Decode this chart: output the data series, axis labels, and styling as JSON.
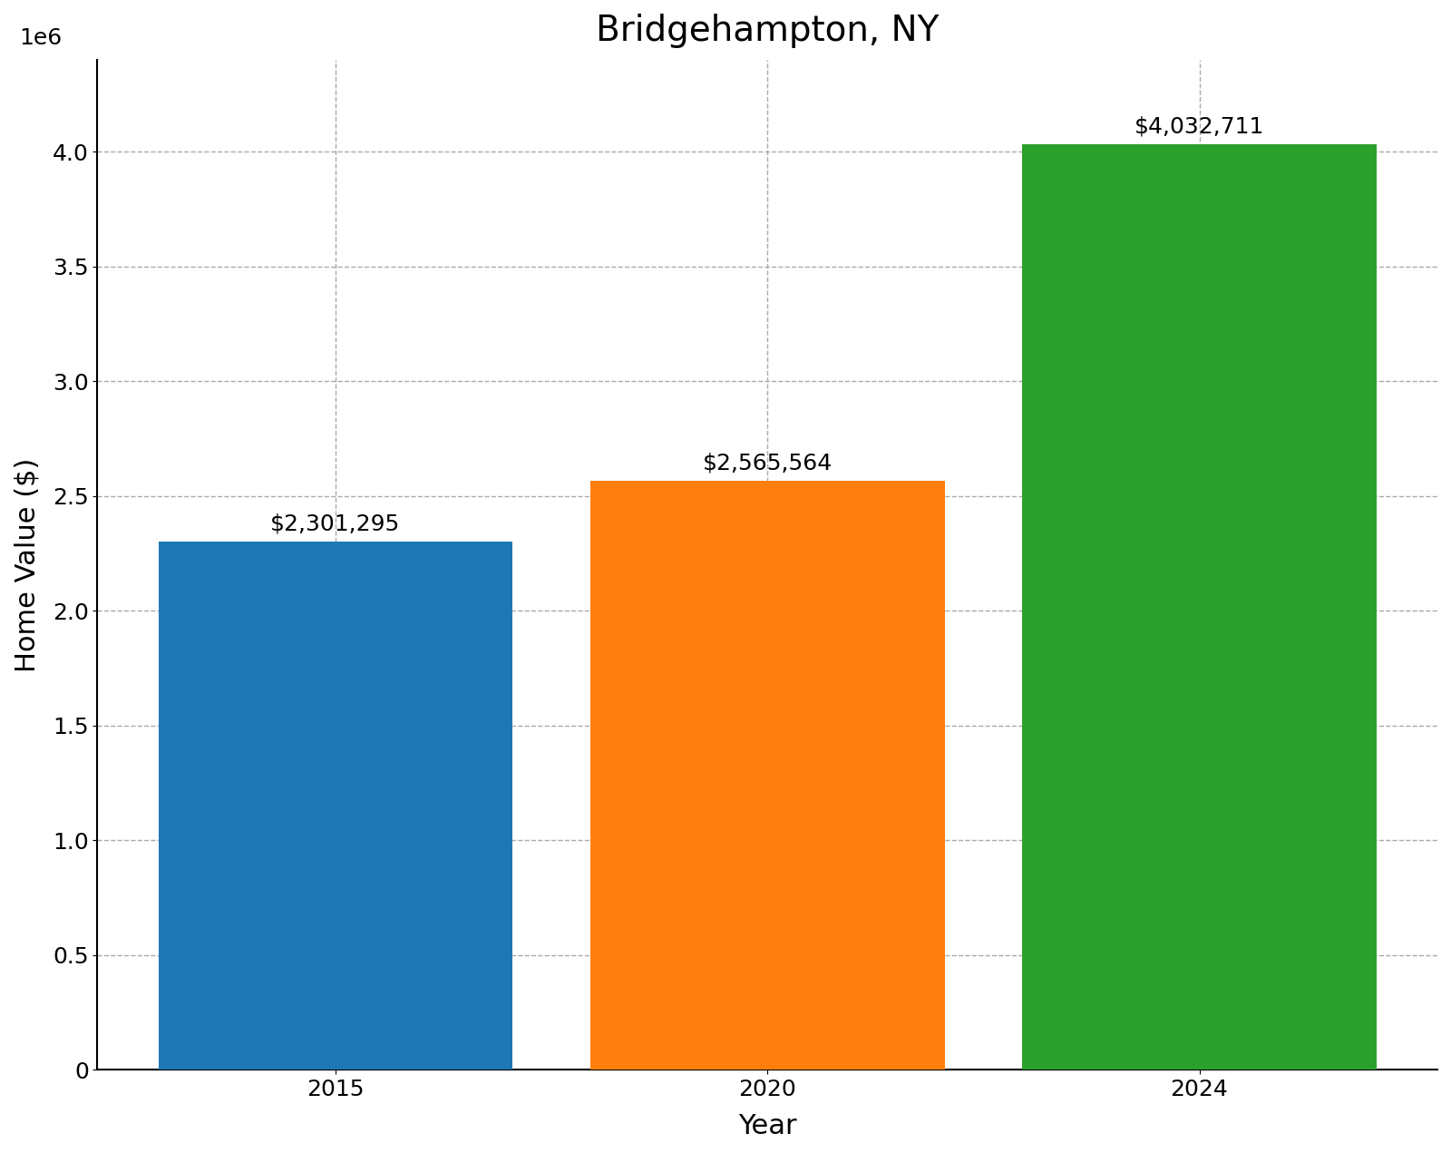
{
  "title": "Bridgehampton, NY",
  "xlabel": "Year",
  "ylabel": "Home Value ($)",
  "categories": [
    "2015",
    "2020",
    "2024"
  ],
  "values": [
    2301295,
    2565564,
    4032711
  ],
  "bar_colors": [
    "#1f77b4",
    "#ff7f0e",
    "#2ca02c"
  ],
  "labels": [
    "$2,301,295",
    "$2,565,564",
    "$4,032,711"
  ],
  "ylim": [
    0,
    4400000
  ],
  "yticks": [
    0,
    500000,
    1000000,
    1500000,
    2000000,
    2500000,
    3000000,
    3500000,
    4000000
  ],
  "title_fontsize": 28,
  "axis_label_fontsize": 22,
  "tick_fontsize": 18,
  "annotation_fontsize": 18,
  "background_color": "#ffffff",
  "grid_color": "#aaaaaa",
  "grid_linestyle": "--",
  "grid_linewidth": 1.0,
  "bar_width": 0.82
}
